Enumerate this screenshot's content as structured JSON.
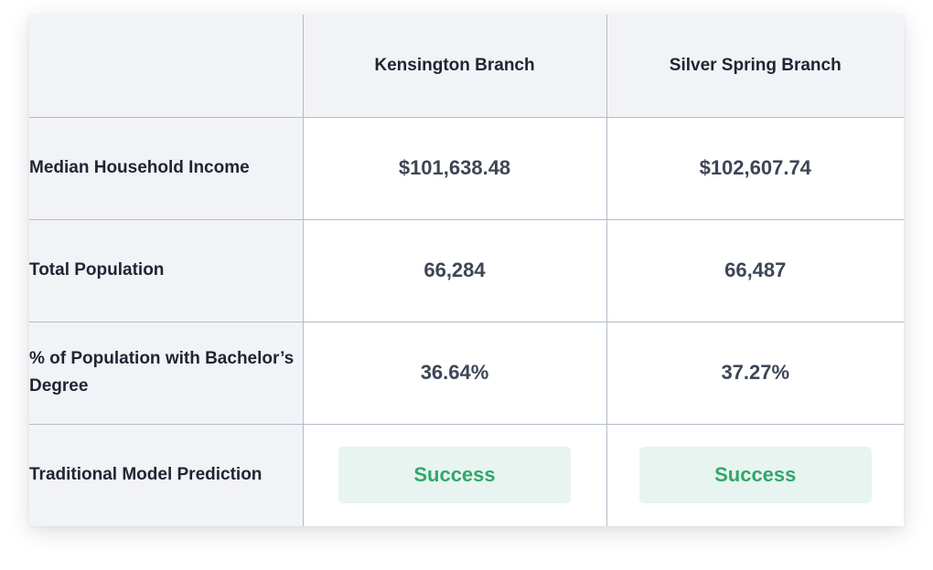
{
  "table": {
    "columns": [
      "",
      "Kensington Branch",
      "Silver Spring Branch"
    ],
    "rows": [
      {
        "label": "Median Household Income",
        "values": [
          "$101,638.48",
          "$102,607.74"
        ]
      },
      {
        "label": "Total Population",
        "values": [
          "66,284",
          "66,487"
        ]
      },
      {
        "label": "% of Population with Bachelor’s Degree",
        "values": [
          "36.64%",
          "37.27%"
        ]
      },
      {
        "label": "Traditional Model Prediction",
        "values": [
          "Success",
          "Success"
        ]
      }
    ]
  },
  "colors": {
    "header_bg": "#f2f3f6",
    "grid_line": "#b3bccb",
    "success_text": "#2fa76b",
    "success_bg": "#e8f4ef"
  }
}
